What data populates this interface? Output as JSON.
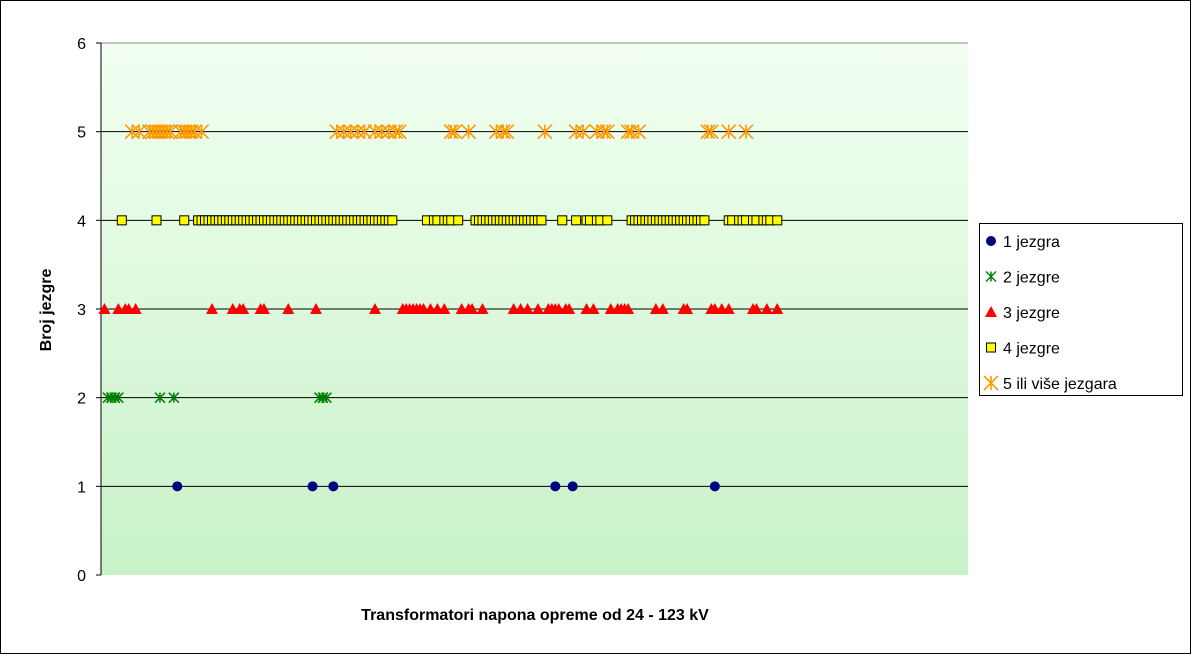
{
  "chart_data": {
    "type": "scatter",
    "xlabel": "Transformatori napona opreme od 24 - 123 kV",
    "ylabel": "Broj jezgre",
    "xlim": [
      0,
      250
    ],
    "ylim": [
      0,
      6
    ],
    "yticks": [
      0,
      1,
      2,
      3,
      4,
      5,
      6
    ],
    "grid": true,
    "legend": "right",
    "series": [
      {
        "name": "1 jezgra",
        "color": "#000080",
        "marker": "circle",
        "x": [
          22,
          61,
          67,
          131,
          136,
          177
        ],
        "values": [
          1,
          1,
          1,
          1,
          1,
          1
        ]
      },
      {
        "name": "2 jezgre",
        "color": "#008000",
        "marker": "asterisk",
        "x": [
          2,
          3,
          4,
          5,
          17,
          21,
          63,
          64,
          65
        ],
        "values": [
          2,
          2,
          2,
          2,
          2,
          2,
          2,
          2,
          2
        ]
      },
      {
        "name": "3 jezgre",
        "color": "#ff0000",
        "marker": "triangle",
        "x": [
          1,
          5,
          7,
          8,
          10,
          32,
          38,
          40,
          41,
          46,
          47,
          54,
          62,
          79,
          87,
          88,
          89,
          90,
          91,
          92,
          93,
          95,
          97,
          99,
          104,
          106,
          107,
          110,
          119,
          121,
          123,
          126,
          129,
          130,
          131,
          132,
          134,
          135,
          140,
          142,
          147,
          149,
          150,
          151,
          152,
          160,
          162,
          168,
          169,
          176,
          177,
          179,
          181,
          188,
          189,
          192,
          195
        ],
        "values": [
          3,
          3,
          3,
          3,
          3,
          3,
          3,
          3,
          3,
          3,
          3,
          3,
          3,
          3,
          3,
          3,
          3,
          3,
          3,
          3,
          3,
          3,
          3,
          3,
          3,
          3,
          3,
          3,
          3,
          3,
          3,
          3,
          3,
          3,
          3,
          3,
          3,
          3,
          3,
          3,
          3,
          3,
          3,
          3,
          3,
          3,
          3,
          3,
          3,
          3,
          3,
          3,
          3,
          3,
          3,
          3,
          3
        ]
      },
      {
        "name": "4 jezgre",
        "color": "#ffff00",
        "marker": "square",
        "x": [
          6,
          16,
          24,
          28,
          29,
          30,
          31,
          32,
          33,
          34,
          35,
          36,
          37,
          38,
          39,
          40,
          41,
          42,
          43,
          44,
          45,
          46,
          47,
          48,
          49,
          50,
          51,
          52,
          53,
          54,
          55,
          56,
          57,
          58,
          59,
          60,
          61,
          62,
          63,
          64,
          65,
          66,
          67,
          68,
          69,
          70,
          71,
          72,
          73,
          74,
          75,
          76,
          77,
          78,
          79,
          80,
          81,
          82,
          83,
          84,
          94,
          96,
          97,
          99,
          100,
          101,
          103,
          108,
          109,
          110,
          111,
          112,
          113,
          114,
          115,
          116,
          117,
          118,
          119,
          120,
          121,
          122,
          123,
          124,
          125,
          126,
          127,
          133,
          137,
          140,
          141,
          143,
          144,
          146,
          153,
          154,
          155,
          156,
          157,
          158,
          159,
          160,
          161,
          162,
          163,
          164,
          165,
          166,
          167,
          168,
          169,
          170,
          171,
          172,
          173,
          174,
          181,
          182,
          184,
          185,
          186,
          188,
          189,
          191,
          192,
          193,
          195
        ],
        "values": [
          4,
          4,
          4,
          4,
          4,
          4,
          4,
          4,
          4,
          4,
          4,
          4,
          4,
          4,
          4,
          4,
          4,
          4,
          4,
          4,
          4,
          4,
          4,
          4,
          4,
          4,
          4,
          4,
          4,
          4,
          4,
          4,
          4,
          4,
          4,
          4,
          4,
          4,
          4,
          4,
          4,
          4,
          4,
          4,
          4,
          4,
          4,
          4,
          4,
          4,
          4,
          4,
          4,
          4,
          4,
          4,
          4,
          4,
          4,
          4,
          4,
          4,
          4,
          4,
          4,
          4,
          4,
          4,
          4,
          4,
          4,
          4,
          4,
          4,
          4,
          4,
          4,
          4,
          4,
          4,
          4,
          4,
          4,
          4,
          4,
          4,
          4,
          4,
          4,
          4,
          4,
          4,
          4,
          4,
          4,
          4,
          4,
          4,
          4,
          4,
          4,
          4,
          4,
          4,
          4,
          4,
          4,
          4,
          4,
          4,
          4,
          4,
          4,
          4,
          4,
          4,
          4,
          4,
          4,
          4,
          4,
          4,
          4,
          4,
          4,
          4,
          4
        ]
      },
      {
        "name": "5 ili više jezgara",
        "color": "#ff9900",
        "marker": "star",
        "x": [
          9,
          11,
          14,
          15,
          16,
          17,
          18,
          19,
          20,
          23,
          24,
          25,
          26,
          27,
          29,
          68,
          70,
          72,
          74,
          76,
          79,
          81,
          83,
          85,
          86,
          101,
          102,
          106,
          114,
          116,
          117,
          128,
          137,
          139,
          143,
          145,
          146,
          152,
          153,
          155,
          175,
          176,
          181,
          186
        ],
        "values": [
          5,
          5,
          5,
          5,
          5,
          5,
          5,
          5,
          5,
          5,
          5,
          5,
          5,
          5,
          5,
          5,
          5,
          5,
          5,
          5,
          5,
          5,
          5,
          5,
          5,
          5,
          5,
          5,
          5,
          5,
          5,
          5,
          5,
          5,
          5,
          5,
          5,
          5,
          5,
          5,
          5,
          5,
          5,
          5
        ]
      }
    ]
  }
}
